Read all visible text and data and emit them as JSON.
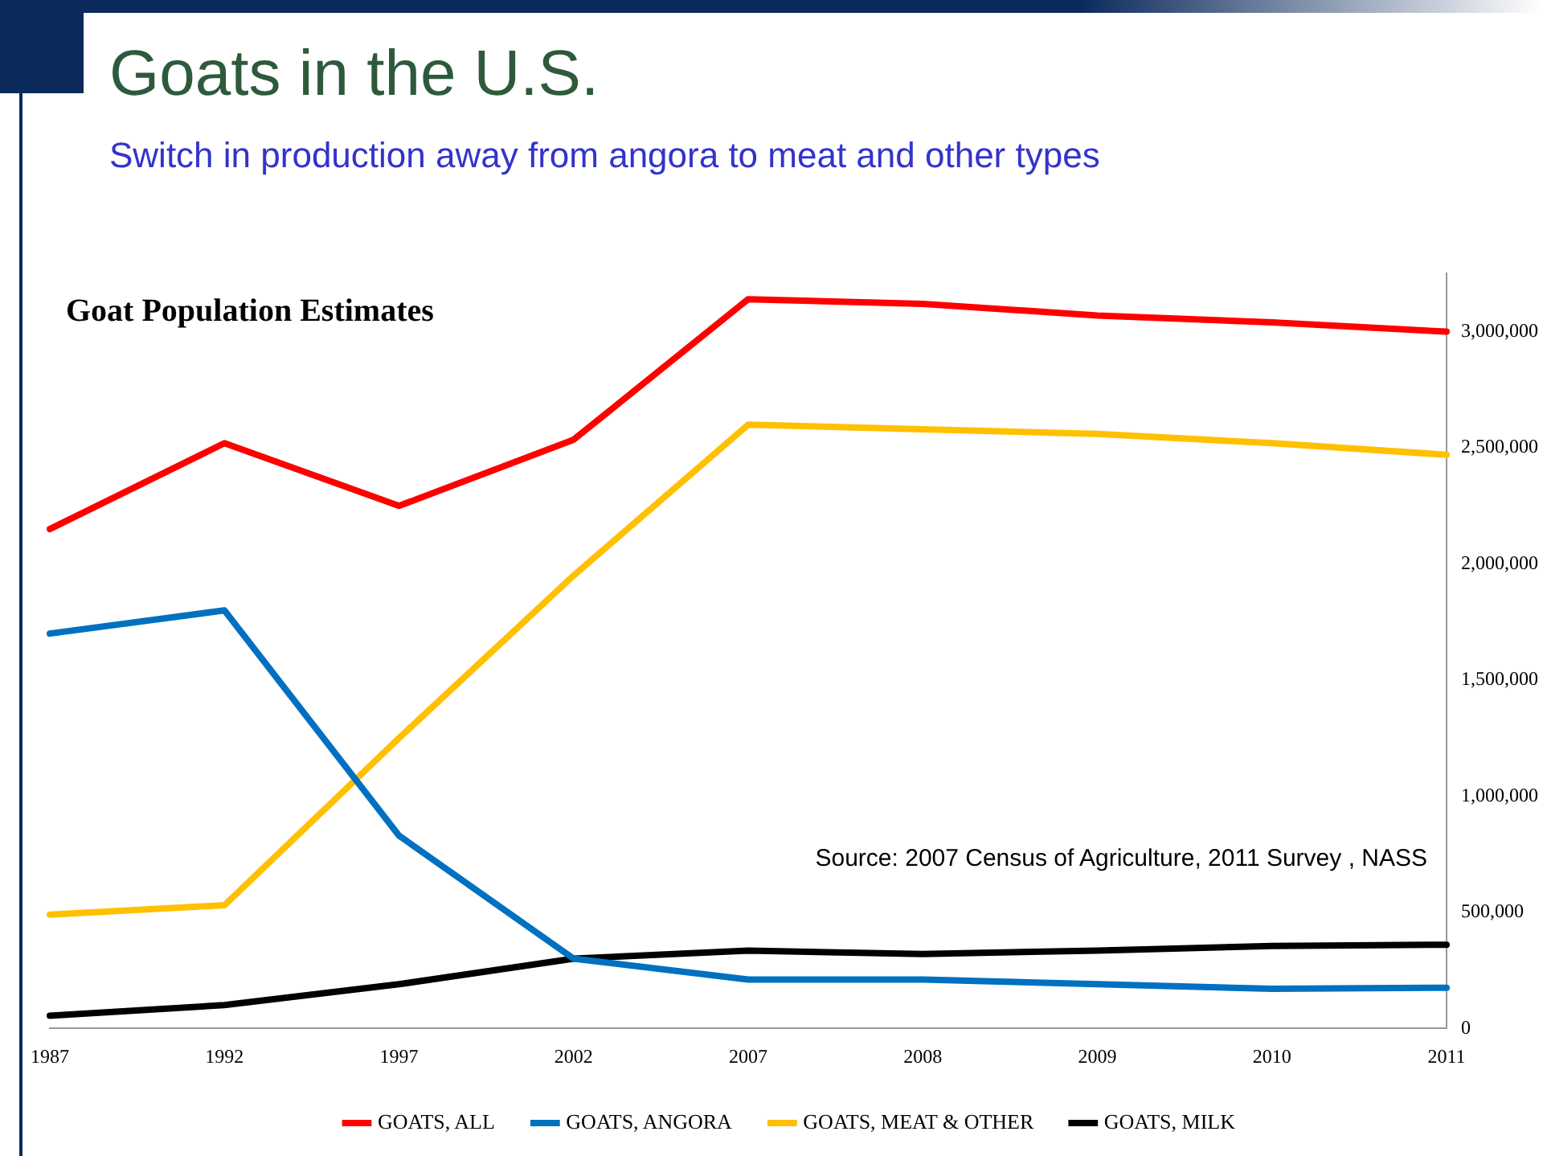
{
  "chart_data": {
    "type": "line",
    "title": "Goats in the U.S.",
    "subtitle": "Switch in production away from angora to meat and other types",
    "categories": [
      "1987",
      "1992",
      "1997",
      "2002",
      "2007",
      "2008",
      "2009",
      "2010",
      "2011"
    ],
    "series": [
      {
        "name": "GOATS, ALL",
        "color": "#ff0000",
        "values": [
          2150000,
          2520000,
          2250000,
          2535000,
          3140000,
          3120000,
          3070000,
          3040000,
          3000000
        ]
      },
      {
        "name": "GOATS, ANGORA",
        "color": "#0070c0",
        "values": [
          1700000,
          1800000,
          830000,
          300000,
          210000,
          210000,
          190000,
          170000,
          175000
        ]
      },
      {
        "name": "GOATS, MEAT & OTHER",
        "color": "#ffc000",
        "values": [
          490000,
          530000,
          1250000,
          1950000,
          2600000,
          2580000,
          2560000,
          2520000,
          2470000
        ]
      },
      {
        "name": "GOATS, MILK",
        "color": "#000000",
        "values": [
          54000,
          100000,
          190000,
          300000,
          335000,
          320000,
          335000,
          355000,
          360000
        ]
      }
    ],
    "ylim": [
      0,
      3250000
    ],
    "yticks": [
      0,
      {
        "value": 500000,
        "label": "500,000"
      },
      {
        "value": 1000000,
        "label": "1,000,000"
      },
      {
        "value": 1500000,
        "label": "1,500,000"
      },
      {
        "value": 2000000,
        "label": "2,000,000"
      },
      {
        "value": 2500000,
        "label": "2,500,000"
      },
      {
        "value": 3000000,
        "label": "3,000,000"
      }
    ],
    "grid": false,
    "legend": "bottom",
    "marker": "none",
    "line_style": "solid",
    "annotations": [
      "Goat Population Estimates",
      "Source: 2007 Census of Agriculture, 2011 Survey , NASS"
    ]
  }
}
